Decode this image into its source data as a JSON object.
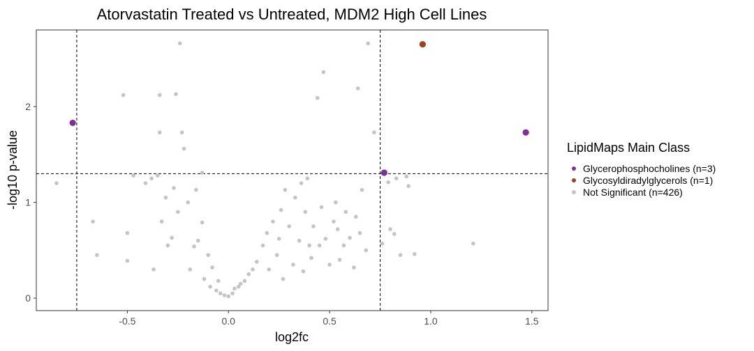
{
  "chart_data": {
    "type": "scatter",
    "title": "Atorvastatin Treated vs Untreated, MDM2 High Cell Lines",
    "xlabel": "log2fc",
    "ylabel": "-log10 p-value",
    "xlim": [
      -0.95,
      1.58
    ],
    "ylim": [
      -0.13,
      2.8
    ],
    "x_ticks": [
      -0.5,
      0.0,
      0.5,
      1.0,
      1.5
    ],
    "x_tick_labels": [
      "-0.5",
      "0.0",
      "0.5",
      "1.0",
      "1.5"
    ],
    "y_ticks": [
      0,
      1,
      2
    ],
    "y_tick_labels": [
      "0",
      "1",
      "2"
    ],
    "thresholds": {
      "x": [
        -0.75,
        0.75
      ],
      "y": 1.3
    },
    "grid": false,
    "legend": {
      "title": "LipidMaps Main Class",
      "placement": "right",
      "entries": [
        {
          "label": "Glycerophosphocholines (n=3)",
          "color": "#7B3294"
        },
        {
          "label": "Glycosyldiradylglycerols (n=1)",
          "color": "#A0401F"
        },
        {
          "label": "Not Significant (n=426)",
          "color": "#C4C4C4"
        }
      ]
    },
    "series": [
      {
        "name": "Glycerophosphocholines (n=3)",
        "color": "#7B3294",
        "points": [
          [
            -0.77,
            1.83
          ],
          [
            0.77,
            1.31
          ],
          [
            1.47,
            1.73
          ]
        ]
      },
      {
        "name": "Glycosyldiradylglycerols (n=1)",
        "color": "#A0401F",
        "points": [
          [
            0.96,
            2.65
          ]
        ]
      },
      {
        "name": "Not Significant (n=426)",
        "color": "#C4C4C4",
        "points": [
          [
            -0.85,
            1.2
          ],
          [
            -0.67,
            0.8
          ],
          [
            -0.65,
            0.45
          ],
          [
            -0.52,
            2.12
          ],
          [
            -0.5,
            0.68
          ],
          [
            -0.5,
            0.39
          ],
          [
            -0.47,
            1.28
          ],
          [
            -0.41,
            1.2
          ],
          [
            -0.38,
            1.25
          ],
          [
            -0.37,
            0.3
          ],
          [
            -0.35,
            1.28
          ],
          [
            -0.34,
            2.12
          ],
          [
            -0.34,
            1.73
          ],
          [
            -0.33,
            0.8
          ],
          [
            -0.31,
            1.05
          ],
          [
            -0.3,
            0.55
          ],
          [
            -0.28,
            0.63
          ],
          [
            -0.27,
            1.15
          ],
          [
            -0.26,
            2.13
          ],
          [
            -0.25,
            0.9
          ],
          [
            -0.24,
            2.66
          ],
          [
            -0.23,
            1.73
          ],
          [
            -0.22,
            1.56
          ],
          [
            -0.2,
            1.0
          ],
          [
            -0.19,
            0.3
          ],
          [
            -0.17,
            0.54
          ],
          [
            -0.16,
            1.13
          ],
          [
            -0.15,
            0.6
          ],
          [
            -0.13,
            1.31
          ],
          [
            -0.13,
            0.79
          ],
          [
            -0.12,
            0.2
          ],
          [
            -0.1,
            0.45
          ],
          [
            -0.09,
            0.12
          ],
          [
            -0.08,
            0.32
          ],
          [
            -0.06,
            0.08
          ],
          [
            -0.05,
            0.18
          ],
          [
            -0.04,
            0.05
          ],
          [
            -0.02,
            0.03
          ],
          [
            0.0,
            0.02
          ],
          [
            0.02,
            0.05
          ],
          [
            0.03,
            0.1
          ],
          [
            0.05,
            0.12
          ],
          [
            0.06,
            0.15
          ],
          [
            0.08,
            0.18
          ],
          [
            0.1,
            0.25
          ],
          [
            0.12,
            0.3
          ],
          [
            0.14,
            0.38
          ],
          [
            0.17,
            0.55
          ],
          [
            0.19,
            0.68
          ],
          [
            0.2,
            0.3
          ],
          [
            0.22,
            0.8
          ],
          [
            0.24,
            0.45
          ],
          [
            0.25,
            0.62
          ],
          [
            0.26,
            0.92
          ],
          [
            0.27,
            0.2
          ],
          [
            0.28,
            1.13
          ],
          [
            0.3,
            0.75
          ],
          [
            0.32,
            0.35
          ],
          [
            0.33,
            1.05
          ],
          [
            0.35,
            0.6
          ],
          [
            0.36,
            1.2
          ],
          [
            0.37,
            0.28
          ],
          [
            0.38,
            0.9
          ],
          [
            0.39,
            1.25
          ],
          [
            0.4,
            0.55
          ],
          [
            0.41,
            0.42
          ],
          [
            0.42,
            0.75
          ],
          [
            0.44,
            2.09
          ],
          [
            0.45,
            0.55
          ],
          [
            0.46,
            0.95
          ],
          [
            0.47,
            2.36
          ],
          [
            0.48,
            0.62
          ],
          [
            0.5,
            0.35
          ],
          [
            0.52,
            0.8
          ],
          [
            0.53,
            1.0
          ],
          [
            0.54,
            0.72
          ],
          [
            0.55,
            0.4
          ],
          [
            0.57,
            0.55
          ],
          [
            0.58,
            0.9
          ],
          [
            0.6,
            0.63
          ],
          [
            0.62,
            0.32
          ],
          [
            0.63,
            0.85
          ],
          [
            0.64,
            2.19
          ],
          [
            0.65,
            0.68
          ],
          [
            0.66,
            1.13
          ],
          [
            0.68,
            0.5
          ],
          [
            0.69,
            2.66
          ],
          [
            0.72,
            1.73
          ],
          [
            0.76,
            0.57
          ],
          [
            0.79,
            1.21
          ],
          [
            0.8,
            0.72
          ],
          [
            0.82,
            0.67
          ],
          [
            0.83,
            1.25
          ],
          [
            0.85,
            0.45
          ],
          [
            0.88,
            1.27
          ],
          [
            0.89,
            1.17
          ],
          [
            0.92,
            0.46
          ],
          [
            1.21,
            0.57
          ]
        ]
      }
    ]
  }
}
